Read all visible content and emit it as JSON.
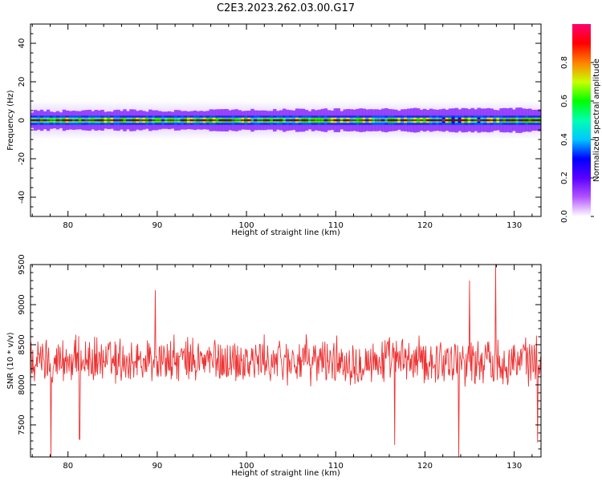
{
  "title": "C2E3.2023.262.03.00.G17",
  "chart_data": [
    {
      "type": "heatmap",
      "xlabel": "Height of straight line (km)",
      "ylabel": "Frequency (Hz)",
      "xlim": [
        75.8,
        133.0
      ],
      "ylim": [
        -50,
        50
      ],
      "xticks": [
        80,
        90,
        100,
        110,
        120,
        130
      ],
      "yticks": [
        -40,
        -20,
        0,
        20,
        40
      ],
      "band_center_hz": 0,
      "band_halfwidth_hz": 2.5,
      "colorbar": {
        "label": "Normalized spectral amplitude",
        "range": [
          0.0,
          1.0
        ],
        "ticks": [
          0.0,
          0.2,
          0.4,
          0.6,
          0.8
        ],
        "colors": [
          "#ffffff",
          "#b455ff",
          "#5a00ff",
          "#0000ff",
          "#00c8ff",
          "#00ffb0",
          "#00ff00",
          "#c8ff00",
          "#ff8000",
          "#ff0000",
          "#ff0070"
        ]
      }
    },
    {
      "type": "line",
      "xlabel": "Height of straight line (km)",
      "ylabel": "SNR (10 * v/v)",
      "xlim": [
        75.8,
        133.0
      ],
      "ylim": [
        7100,
        9500
      ],
      "xticks": [
        80,
        90,
        100,
        110,
        120,
        130
      ],
      "yticks": [
        7500,
        8000,
        8500,
        9000,
        9500
      ],
      "series": [
        {
          "color": "#ee3333",
          "x_range": [
            75.8,
            133.0
          ],
          "mean": 8300,
          "spread": 280,
          "peaks": [
            {
              "x": 89.8,
              "y": 9180
            },
            {
              "x": 127.9,
              "y": 9500
            },
            {
              "x": 125.0,
              "y": 9300
            },
            {
              "x": 78.1,
              "y": 7100
            },
            {
              "x": 116.6,
              "y": 7250
            },
            {
              "x": 123.8,
              "y": 7100
            },
            {
              "x": 132.6,
              "y": 7280
            },
            {
              "x": 81.3,
              "y": 7320
            }
          ]
        }
      ]
    }
  ]
}
